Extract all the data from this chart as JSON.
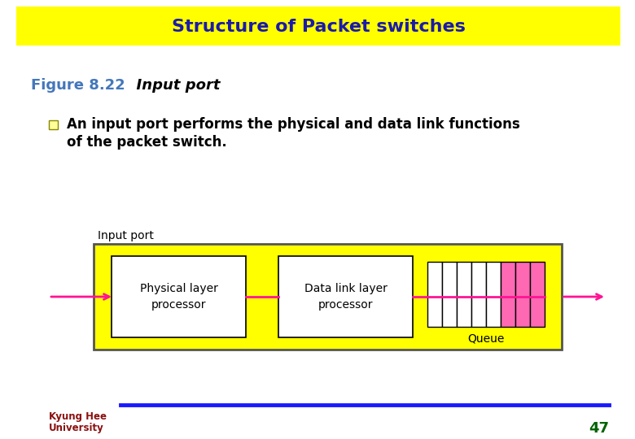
{
  "title": "Structure of Packet switches",
  "title_bg": "#FFFF00",
  "title_color": "#1a1aaa",
  "title_fontsize": 16,
  "fig_bg": "#FFFFFF",
  "figure_caption": "Figure 8.22",
  "figure_caption_color": "#4477BB",
  "figure_caption_italic": "  Input port",
  "figure_caption_italic_color": "#000000",
  "bullet_text1": "An input port performs the physical and data link functions",
  "bullet_text2": "of the packet switch.",
  "text_fontsize": 12,
  "diagram_label": "Input port",
  "box1_label": "Physical layer\nprocessor",
  "box2_label": "Data link layer\nprocessor",
  "queue_label": "Queue",
  "yellow_bg": "#FFFF00",
  "arrow_color": "#FF1493",
  "outer_box_edge": "#333333",
  "footer_line_color": "#1a1aFF",
  "page_number": "47",
  "page_number_color": "#006400",
  "footer_text1": "Kyung Hee",
  "footer_text2": "University",
  "footer_text_color": "#8B1010",
  "num_white_cells": 5,
  "num_pink_cells": 3,
  "pink_color": "#FF69B4"
}
